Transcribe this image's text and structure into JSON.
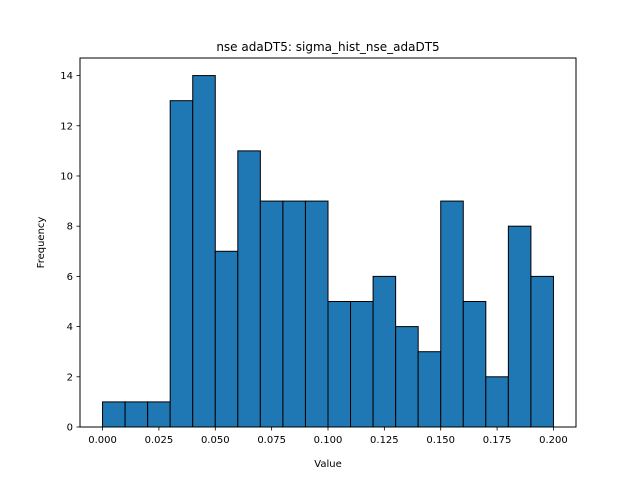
{
  "chart_data": {
    "type": "bar",
    "title": "nse adaDT5: sigma_hist_nse_adaDT5",
    "xlabel": "Value",
    "ylabel": "Frequency",
    "bin_edges": [
      0.0,
      0.01,
      0.02,
      0.03,
      0.04,
      0.05,
      0.06,
      0.07,
      0.08,
      0.09,
      0.1,
      0.11,
      0.12,
      0.13,
      0.14,
      0.15,
      0.16,
      0.17,
      0.18,
      0.19,
      0.2
    ],
    "values": [
      1,
      1,
      1,
      13,
      14,
      7,
      11,
      9,
      9,
      9,
      5,
      5,
      6,
      4,
      3,
      9,
      5,
      2,
      8,
      6
    ],
    "xlim": [
      -0.01,
      0.21
    ],
    "ylim": [
      0,
      14.7
    ],
    "xticks": [
      0.0,
      0.025,
      0.05,
      0.075,
      0.1,
      0.125,
      0.15,
      0.175,
      0.2
    ],
    "xtick_labels": [
      "0.000",
      "0.025",
      "0.050",
      "0.075",
      "0.100",
      "0.125",
      "0.150",
      "0.175",
      "0.200"
    ],
    "yticks": [
      0,
      2,
      4,
      6,
      8,
      10,
      12,
      14
    ],
    "ytick_labels": [
      "0",
      "2",
      "4",
      "6",
      "8",
      "10",
      "12",
      "14"
    ],
    "bar_color": "#1f77b4",
    "edge_color": "#000000",
    "grid": false,
    "legend": "none"
  }
}
